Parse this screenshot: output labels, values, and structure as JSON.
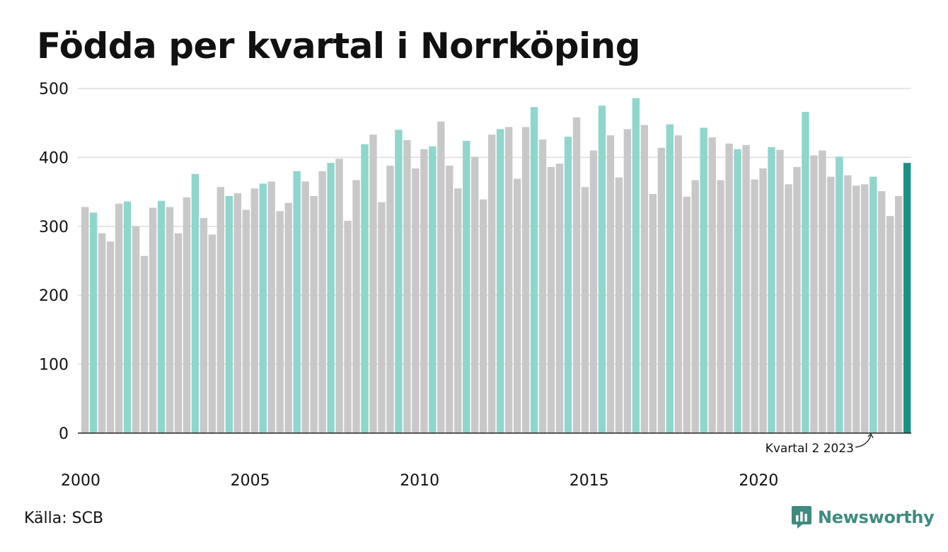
{
  "title": "Födda per kvartal i Norrköping",
  "source": "Källa: SCB",
  "brand": "Newsworthy",
  "chart_data": {
    "type": "bar",
    "title": "Födda per kvartal i Norrköping",
    "ylim": [
      0,
      500
    ],
    "y_ticks": [
      "0",
      "100",
      "200",
      "300",
      "400",
      "500"
    ],
    "x_ticks": [
      "2000",
      "2005",
      "2010",
      "2015",
      "2020"
    ],
    "grid": true,
    "colors": {
      "highlight": "#8fd6cc",
      "other": "#c8c8c8",
      "latest": "#1a9187"
    },
    "annotation": "Kvartal 2 2023",
    "categories": [
      "2000 K1",
      "2000 K2",
      "2000 K3",
      "2000 K4",
      "2001 K1",
      "2001 K2",
      "2001 K3",
      "2001 K4",
      "2002 K1",
      "2002 K2",
      "2002 K3",
      "2002 K4",
      "2003 K1",
      "2003 K2",
      "2003 K3",
      "2003 K4",
      "2004 K1",
      "2004 K2",
      "2004 K3",
      "2004 K4",
      "2005 K1",
      "2005 K2",
      "2005 K3",
      "2005 K4",
      "2006 K1",
      "2006 K2",
      "2006 K3",
      "2006 K4",
      "2007 K1",
      "2007 K2",
      "2007 K3",
      "2007 K4",
      "2008 K1",
      "2008 K2",
      "2008 K3",
      "2008 K4",
      "2009 K1",
      "2009 K2",
      "2009 K3",
      "2009 K4",
      "2010 K1",
      "2010 K2",
      "2010 K3",
      "2010 K4",
      "2011 K1",
      "2011 K2",
      "2011 K3",
      "2011 K4",
      "2012 K1",
      "2012 K2",
      "2012 K3",
      "2012 K4",
      "2013 K1",
      "2013 K2",
      "2013 K3",
      "2013 K4",
      "2014 K1",
      "2014 K2",
      "2014 K3",
      "2014 K4",
      "2015 K1",
      "2015 K2",
      "2015 K3",
      "2015 K4",
      "2016 K1",
      "2016 K2",
      "2016 K3",
      "2016 K4",
      "2017 K1",
      "2017 K2",
      "2017 K3",
      "2017 K4",
      "2018 K1",
      "2018 K2",
      "2018 K3",
      "2018 K4",
      "2019 K1",
      "2019 K2",
      "2019 K3",
      "2019 K4",
      "2020 K1",
      "2020 K2",
      "2020 K3",
      "2020 K4",
      "2021 K1",
      "2021 K2",
      "2021 K3",
      "2021 K4",
      "2022 K1",
      "2022 K2",
      "2022 K3",
      "2022 K4",
      "2023 K1",
      "2023 K2",
      "2023 K3",
      "2023 K4",
      "2024 K1",
      "2024 K2"
    ],
    "values": [
      328,
      320,
      290,
      278,
      333,
      336,
      300,
      257,
      327,
      337,
      328,
      290,
      342,
      376,
      312,
      288,
      357,
      344,
      348,
      324,
      355,
      362,
      365,
      322,
      334,
      380,
      365,
      344,
      380,
      392,
      398,
      308,
      367,
      419,
      433,
      335,
      388,
      440,
      425,
      384,
      412,
      416,
      452,
      388,
      355,
      424,
      401,
      339,
      433,
      441,
      444,
      369,
      444,
      473,
      426,
      386,
      391,
      430,
      458,
      357,
      410,
      475,
      432,
      371,
      441,
      486,
      447,
      347,
      414,
      448,
      432,
      343,
      367,
      443,
      429,
      367,
      420,
      412,
      418,
      368,
      384,
      415,
      411,
      361,
      386,
      466,
      403,
      410,
      372,
      401,
      374,
      359,
      361,
      372,
      351,
      315,
      344,
      392
    ],
    "highlight_index": 93,
    "latest_index": 97
  }
}
